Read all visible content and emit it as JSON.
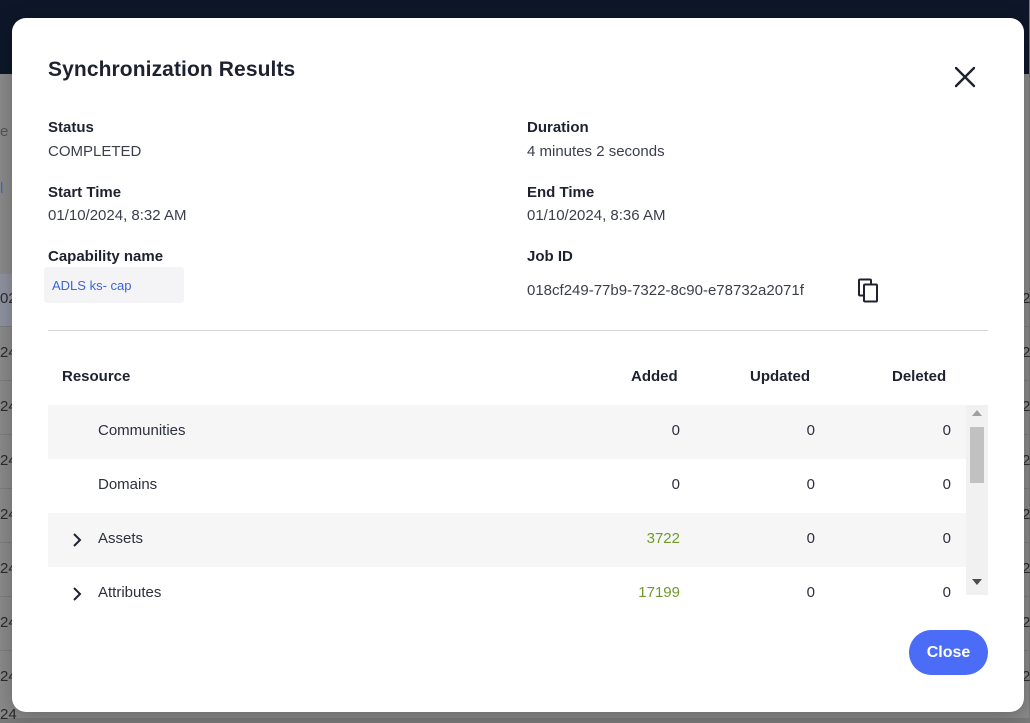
{
  "background": {
    "fragments": [
      "e",
      "l",
      "02",
      "24",
      "24",
      "24",
      "24",
      "24",
      "24",
      "24",
      "24",
      "2",
      "2",
      "2",
      "2",
      "2",
      "2",
      "2",
      "2"
    ]
  },
  "dialog": {
    "title": "Synchronization Results",
    "close_icon": "close-icon",
    "fields": {
      "status": {
        "label": "Status",
        "value": "COMPLETED"
      },
      "duration": {
        "label": "Duration",
        "value": "4 minutes 2 seconds"
      },
      "start_time": {
        "label": "Start Time",
        "value": "01/10/2024, 8:32 AM"
      },
      "end_time": {
        "label": "End Time",
        "value": "01/10/2024, 8:36 AM"
      },
      "capability": {
        "label": "Capability name",
        "value": "ADLS ks- cap"
      },
      "job_id": {
        "label": "Job ID",
        "value": "018cf249-77b9-7322-8c90-e78732a2071f",
        "icon": "copy-icon"
      }
    },
    "table": {
      "headers": {
        "resource": "Resource",
        "added": "Added",
        "updated": "Updated",
        "deleted": "Deleted"
      },
      "rows": [
        {
          "name": "Communities",
          "added": "0",
          "updated": "0",
          "deleted": "0",
          "expandable": false
        },
        {
          "name": "Domains",
          "added": "0",
          "updated": "0",
          "deleted": "0",
          "expandable": false
        },
        {
          "name": "Assets",
          "added": "3722",
          "updated": "0",
          "deleted": "0",
          "expandable": true
        },
        {
          "name": "Attributes",
          "added": "17199",
          "updated": "0",
          "deleted": "0",
          "expandable": true
        }
      ]
    },
    "close_button": "Close",
    "colors": {
      "primary": "#4a6cf7",
      "link": "#3a66d6",
      "added_nonzero": "#6f9a2c"
    }
  }
}
